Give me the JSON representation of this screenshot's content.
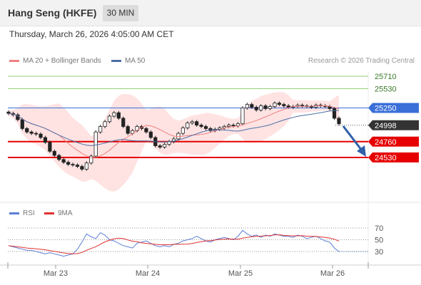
{
  "header": {
    "title": "Hang Seng (HKFE)",
    "timeframe": "30 MIN"
  },
  "timestamp": "Thursday, March 26, 2026 4:05:00 AM CET",
  "legend": {
    "ma20": "MA 20 + Bollinger Bands",
    "ma50": "MA 50",
    "credit": "Research © 2026 Trading Central"
  },
  "indicator_legend": {
    "rsi": "RSI",
    "ma9": "9MA"
  },
  "colors": {
    "resistance": "#8fce6e",
    "pivot": "#3a6fd8",
    "current": "#333333",
    "support": "#e60000",
    "bollinger_fill": "#ffd9d9",
    "ma20": "#f08080",
    "ma50": "#4a6fa5",
    "rsi": "#5b7fd6",
    "rsi_ma": "#e03030",
    "arrow": "#2f5fa8"
  },
  "chart_data": {
    "type": "candlestick",
    "price_levels": [
      {
        "label": "25710",
        "value": 25710,
        "kind": "resistance"
      },
      {
        "label": "25530",
        "value": 25530,
        "kind": "resistance"
      },
      {
        "label": "25250",
        "value": 25250,
        "kind": "pivot"
      },
      {
        "label": "24998",
        "value": 24998,
        "kind": "current"
      },
      {
        "label": "24760",
        "value": 24760,
        "kind": "support"
      },
      {
        "label": "24530",
        "value": 24530,
        "kind": "support"
      }
    ],
    "x_tick_labels": [
      "Mar 23",
      "Mar 24",
      "Mar 25",
      "Mar 26"
    ],
    "rsi_levels": [
      "70",
      "50",
      "30"
    ],
    "close_series": [
      25170,
      25150,
      25080,
      24950,
      24900,
      24880,
      24870,
      24820,
      24750,
      24620,
      24560,
      24500,
      24460,
      24430,
      24420,
      24400,
      24360,
      24450,
      24550,
      24900,
      24980,
      25050,
      25130,
      25180,
      25100,
      24980,
      24880,
      24920,
      24980,
      24950,
      24900,
      24820,
      24700,
      24680,
      24720,
      24760,
      24800,
      24880,
      24960,
      25030,
      25050,
      25000,
      24980,
      24950,
      24920,
      24940,
      24960,
      24980,
      25000,
      24990,
      25020,
      25250,
      25300,
      25260,
      25220,
      25280,
      25240,
      25270,
      25320,
      25300,
      25280,
      25260,
      25270,
      25290,
      25280,
      25270,
      25260,
      25290,
      25280,
      25270,
      25240,
      25100,
      25020
    ],
    "rsi_series": [
      40,
      38,
      36,
      34,
      32,
      32,
      30,
      28,
      26,
      28,
      26,
      24,
      22,
      24,
      26,
      34,
      46,
      60,
      55,
      52,
      62,
      58,
      50,
      48,
      44,
      40,
      38,
      36,
      44,
      46,
      48,
      44,
      40,
      38,
      40,
      38,
      42,
      44,
      48,
      50,
      52,
      56,
      52,
      48,
      46,
      50,
      52,
      54,
      52,
      50,
      56,
      66,
      60,
      56,
      58,
      54,
      58,
      56,
      60,
      58,
      56,
      56,
      54,
      58,
      56,
      52,
      54,
      56,
      52,
      48,
      46,
      36,
      30
    ]
  }
}
